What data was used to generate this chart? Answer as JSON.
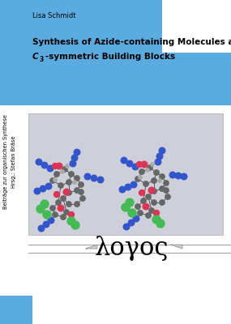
{
  "bg_color": "#ffffff",
  "blue_color": "#5aace0",
  "author": "Lisa Schmidt",
  "title_line1": "Synthesis of Azide-containing Molecules and",
  "title_line2_italic": "C",
  "title_line2_sub": "3",
  "title_line2_rest": "-symmetric Building Blocks",
  "side_text_line1": "Beiträge zur organischen Synthese",
  "side_text_line2": "Hrsg.: Stefan Bräse",
  "mol_bg_color": "#cdd0d9",
  "logo_text": "λογος"
}
